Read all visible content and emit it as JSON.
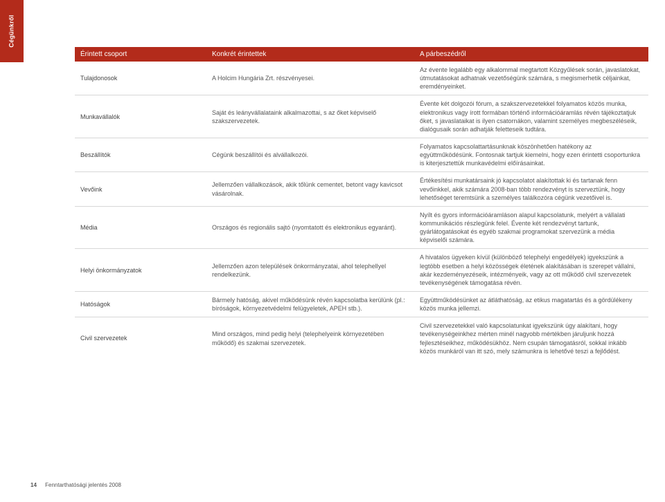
{
  "sideTab": "Cégünkről",
  "colors": {
    "accent": "#b32b1b",
    "border": "#d7d7d7",
    "text": "#555555",
    "bg": "#ffffff"
  },
  "table": {
    "headers": [
      "Érintett csoport",
      "Konkrét érintettek",
      "A párbeszédről"
    ],
    "rows": [
      {
        "group": "Tulajdonosok",
        "stake": "A Holcim Hungária Zrt. részvényesei.",
        "dialog": "Az évente legalább egy alkalommal megtartott Közgyűlések során, javaslatokat, útmutatásokat adhatnak vezetőségünk számára, s megismerhetik céljainkat, eremdényeinket."
      },
      {
        "group": "Munkavállalók",
        "stake": "Saját és leányvállalataink alkalmazottai, s az őket képviselő szakszervezetek.",
        "dialog": "Évente két dolgozói fórum, a szakszervezetekkel folyamatos közös munka, elektronikus vagy írott formában történő információáramlás révén tájékoztatjuk őket, s javaslataikat is ilyen csatornákon, valamint személyes megbeszéléseik, dialógusaik során adhatják feletteseik tudtára."
      },
      {
        "group": "Beszállítók",
        "stake": "Cégünk beszállítói és alvállalkozói.",
        "dialog": "Folyamatos kapcsolattartásunknak köszönhetően hatékony az együttműködésünk. Fontosnak tartjuk kiemelni, hogy ezen érintetti csoportunkra is kiterjesztettük munkavédelmi előírásainkat."
      },
      {
        "group": "Vevőink",
        "stake": "Jellemzően vállalkozások, akik tőlünk cementet, betont vagy kavicsot vásárolnak.",
        "dialog": "Értékesítési munkatársaink jó kapcsolatot alakítottak ki és tartanak fenn vevőinkkel, akik számára 2008-ban több rendezvényt is szerveztünk, hogy lehetőséget teremtsünk a személyes találkozóra cégünk vezetőivel is."
      },
      {
        "group": "Média",
        "stake": "Országos és regionális sajtó (nyomtatott és elektronikus egyaránt).",
        "dialog": "Nyílt és gyors információáramláson alapul kapcsolatunk, melyért a vállalati kommunikációs részlegünk felel. Évente két rendezvényt tartunk, gyárlátogatásokat és egyéb szakmai programokat szervezünk a média képviselői számára."
      },
      {
        "group": "Helyi önkormányzatok",
        "stake": "Jellemzően azon települések önkormányzatai, ahol telephellyel rendelkezünk.",
        "dialog": "A hivatalos ügyeken kívül (különböző telephelyi engedélyek) igyekszünk a legtöbb esetben a helyi közösségek életének alakításában is szerepet vállalni, akár kezdeményezéseik, intézményeik, vagy az ott működő civil szervezetek tevékenységének támogatása révén."
      },
      {
        "group": "Hatóságok",
        "stake": "Bármely hatóság, akivel működésünk révén kapcsolatba kerülünk (pl.: bíróságok, környezetvédelmi felügyeletek, APEH stb.).",
        "dialog": "Együttműködésünket az átláthatóság, az etikus magatartás és a gördülékeny közös munka jellemzi."
      },
      {
        "group": "Civil szervezetek",
        "stake": "Mind országos, mind pedig helyi (telephelyeink környezetében működő) és szakmai szervezetek.",
        "dialog": "Civil szervezetekkel való kapcsolatunkat igyekszünk úgy alakítani, hogy tevékenységeinkhez mérten minél nagyobb mértékben járuljunk hozzá fejlesztéseikhez, működésükhöz. Nem csupán támogatásról, sokkal inkább közös munkáról van itt szó, mely számunkra is lehetővé teszi a fejlődést."
      }
    ]
  },
  "footer": {
    "pageNumber": "14",
    "title": "Fenntarthatósági jelentés 2008"
  }
}
